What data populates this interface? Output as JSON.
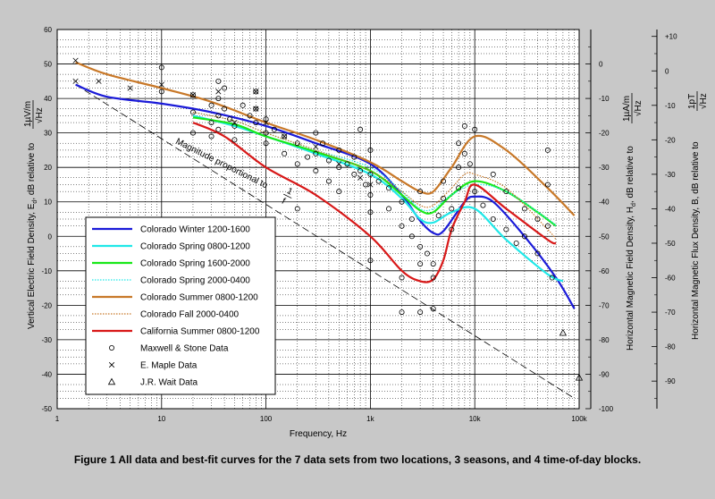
{
  "chart_data": {
    "type": "scatter",
    "title": "",
    "caption": "Figure 1  All data and best-fit curves for the 7 data sets from two locations, 3 seasons, and 4 time-of-day blocks.",
    "xlabel": "Frequency,  Hz",
    "x_scale": "log",
    "xlim": [
      1,
      100000
    ],
    "x_tick_labels": [
      "1",
      "10",
      "100",
      "1k",
      "10k",
      "100k"
    ],
    "ylabel_left": "Vertical Electric Field Density,  E",
    "ylabel_left_sub": "d",
    "ylabel_left_tail": ", dB relative to",
    "ylabel_left_unit_num": "1µV/m",
    "ylabel_left_unit_den": "√Hz",
    "ylim_left": [
      -50,
      60
    ],
    "y_left_ticks": [
      "60",
      "50",
      "40",
      "30",
      "20",
      "10",
      "0",
      "-10",
      "-20",
      "-30",
      "-40",
      "-50"
    ],
    "ylabel_mid": "Horizontal Magnetic Field Density,  H",
    "ylabel_mid_sub": "d",
    "ylabel_mid_tail": ", dB relative to",
    "ylabel_mid_unit_num": "1µA/m",
    "ylabel_mid_unit_den": "√Hz",
    "ylim_mid": [
      -100,
      10
    ],
    "y_mid_ticks": [
      "0",
      "-10",
      "-20",
      "-30",
      "-40",
      "-50",
      "-60",
      "-70",
      "-80",
      "-90",
      "-100"
    ],
    "ylabel_right": "Horizontal Magnetic Flux Density,  B, dB relative to",
    "ylabel_right_unit_num": "1pT",
    "ylabel_right_unit_den": "√Hz",
    "ylim_right": [
      -98,
      12
    ],
    "y_right_ticks": [
      "+10",
      "0",
      "-10",
      "-20",
      "-30",
      "-40",
      "-50",
      "-60",
      "-70",
      "-80",
      "-90"
    ],
    "grid": true,
    "legend_position": "bottom-left",
    "annotation_magnitude": "Magnitude proportional to",
    "annotation_fraction_num": "1",
    "annotation_fraction_den": "f",
    "reference_line": [
      [
        1.5,
        44
      ],
      [
        90000,
        -47
      ]
    ],
    "series": [
      {
        "name": "Colorado Winter 1200-1600",
        "color": "#1a1ad8",
        "style": "solid",
        "points": [
          [
            1.5,
            44
          ],
          [
            3,
            40.5
          ],
          [
            10,
            38.5
          ],
          [
            30,
            36
          ],
          [
            100,
            32
          ],
          [
            300,
            27
          ],
          [
            1000,
            21
          ],
          [
            2000,
            12
          ],
          [
            3000,
            4.5
          ],
          [
            4000,
            1
          ],
          [
            5000,
            1.5
          ],
          [
            8000,
            10
          ],
          [
            10000,
            11.5
          ],
          [
            15000,
            10
          ],
          [
            30000,
            0
          ],
          [
            60000,
            -12
          ],
          [
            90000,
            -21
          ]
        ]
      },
      {
        "name": "Colorado Spring 0800-1200",
        "color": "#20e8e8",
        "style": "solid",
        "points": [
          [
            20,
            35
          ],
          [
            50,
            32
          ],
          [
            100,
            29
          ],
          [
            300,
            24
          ],
          [
            1000,
            18
          ],
          [
            2000,
            11
          ],
          [
            3000,
            5
          ],
          [
            4000,
            4
          ],
          [
            6000,
            7
          ],
          [
            10000,
            8
          ],
          [
            20000,
            -1
          ],
          [
            50000,
            -11
          ],
          [
            70000,
            -13
          ]
        ]
      },
      {
        "name": "Colorado Spring 1600-2000",
        "color": "#18e818",
        "style": "solid",
        "points": [
          [
            20,
            34.5
          ],
          [
            50,
            32.5
          ],
          [
            100,
            29
          ],
          [
            300,
            24.5
          ],
          [
            1000,
            19
          ],
          [
            2000,
            12
          ],
          [
            3000,
            7.5
          ],
          [
            4000,
            7
          ],
          [
            6000,
            12
          ],
          [
            10000,
            16
          ],
          [
            20000,
            13
          ],
          [
            40000,
            7
          ],
          [
            60000,
            3
          ]
        ]
      },
      {
        "name": "Colorado Spring 2000-0400",
        "color": "#20e8e8",
        "style": "dotted",
        "points": [
          [
            20,
            36
          ],
          [
            50,
            33.5
          ],
          [
            100,
            30
          ],
          [
            300,
            25
          ],
          [
            1000,
            20
          ],
          [
            2000,
            13
          ],
          [
            3000,
            8
          ],
          [
            4000,
            8
          ],
          [
            6000,
            12
          ],
          [
            10000,
            15
          ],
          [
            20000,
            13
          ],
          [
            50000,
            5
          ],
          [
            60000,
            3
          ]
        ]
      },
      {
        "name": "Colorado Summer 0800-1200",
        "color": "#c87828",
        "style": "solid",
        "points": [
          [
            1.5,
            50.5
          ],
          [
            3,
            47
          ],
          [
            10,
            43
          ],
          [
            30,
            39
          ],
          [
            100,
            33
          ],
          [
            300,
            28
          ],
          [
            1000,
            21.5
          ],
          [
            2000,
            16
          ],
          [
            3000,
            13
          ],
          [
            4000,
            13
          ],
          [
            6000,
            20
          ],
          [
            10000,
            29
          ],
          [
            20000,
            25
          ],
          [
            50000,
            14
          ],
          [
            90000,
            6
          ]
        ]
      },
      {
        "name": "Colorado Fall 2000-0400",
        "color": "#c87828",
        "style": "dotted",
        "points": [
          [
            20,
            36
          ],
          [
            50,
            33.5
          ],
          [
            100,
            30
          ],
          [
            300,
            25
          ],
          [
            1000,
            19
          ],
          [
            2000,
            13
          ],
          [
            3000,
            9
          ],
          [
            4000,
            9
          ],
          [
            6000,
            14
          ],
          [
            8000,
            18
          ],
          [
            10000,
            18
          ],
          [
            20000,
            14
          ],
          [
            50000,
            2
          ],
          [
            60000,
            -1
          ]
        ]
      },
      {
        "name": "California Summer 0800-1200",
        "color": "#d81818",
        "style": "solid",
        "points": [
          [
            20,
            33
          ],
          [
            40,
            29
          ],
          [
            100,
            20
          ],
          [
            300,
            12
          ],
          [
            1000,
            0
          ],
          [
            2000,
            -10
          ],
          [
            3000,
            -13
          ],
          [
            4000,
            -12.5
          ],
          [
            5000,
            -7
          ],
          [
            6000,
            2
          ],
          [
            8000,
            10
          ],
          [
            10000,
            15
          ],
          [
            20000,
            8
          ],
          [
            50000,
            -1
          ],
          [
            60000,
            -2
          ]
        ]
      },
      {
        "name": "Maxwell & Stone Data",
        "marker": "circle",
        "color": "#000000",
        "points": [
          [
            10,
            49
          ],
          [
            10,
            42
          ],
          [
            20,
            41
          ],
          [
            20,
            36
          ],
          [
            20,
            30
          ],
          [
            30,
            38
          ],
          [
            30,
            33
          ],
          [
            30,
            29
          ],
          [
            35,
            45
          ],
          [
            35,
            40
          ],
          [
            35,
            35
          ],
          [
            35,
            31
          ],
          [
            40,
            43
          ],
          [
            40,
            37
          ],
          [
            45,
            34
          ],
          [
            50,
            32
          ],
          [
            50,
            28
          ],
          [
            60,
            38
          ],
          [
            70,
            35
          ],
          [
            80,
            42
          ],
          [
            80,
            37
          ],
          [
            80,
            33
          ],
          [
            100,
            34
          ],
          [
            100,
            30
          ],
          [
            100,
            27
          ],
          [
            120,
            31
          ],
          [
            150,
            29
          ],
          [
            150,
            24
          ],
          [
            200,
            8
          ],
          [
            200,
            21
          ],
          [
            200,
            27
          ],
          [
            250,
            23
          ],
          [
            300,
            30
          ],
          [
            300,
            24
          ],
          [
            300,
            19
          ],
          [
            350,
            27
          ],
          [
            400,
            22
          ],
          [
            400,
            16
          ],
          [
            500,
            25
          ],
          [
            500,
            20
          ],
          [
            500,
            13
          ],
          [
            600,
            21
          ],
          [
            700,
            18
          ],
          [
            700,
            23
          ],
          [
            800,
            31
          ],
          [
            800,
            19
          ],
          [
            900,
            15
          ],
          [
            1000,
            25
          ],
          [
            1000,
            18
          ],
          [
            1000,
            12
          ],
          [
            1000,
            7
          ],
          [
            1000,
            -7
          ],
          [
            1200,
            16
          ],
          [
            1500,
            14
          ],
          [
            1500,
            8
          ],
          [
            2000,
            10
          ],
          [
            2000,
            3
          ],
          [
            2000,
            -12
          ],
          [
            2000,
            -22
          ],
          [
            2500,
            5
          ],
          [
            2500,
            0
          ],
          [
            3000,
            13
          ],
          [
            3000,
            -3
          ],
          [
            3000,
            -8
          ],
          [
            3000,
            -22
          ],
          [
            3500,
            -5
          ],
          [
            4000,
            -8
          ],
          [
            4000,
            -12
          ],
          [
            4000,
            -21
          ],
          [
            4500,
            6
          ],
          [
            5000,
            11
          ],
          [
            5000,
            16
          ],
          [
            6000,
            8
          ],
          [
            6000,
            2
          ],
          [
            7000,
            27
          ],
          [
            7000,
            20
          ],
          [
            7000,
            14
          ],
          [
            8000,
            32
          ],
          [
            8000,
            24
          ],
          [
            9000,
            21
          ],
          [
            10000,
            31
          ],
          [
            10000,
            13
          ],
          [
            12000,
            9
          ],
          [
            15000,
            18
          ],
          [
            15000,
            5
          ],
          [
            20000,
            13
          ],
          [
            20000,
            2
          ],
          [
            25000,
            -2
          ],
          [
            30000,
            8
          ],
          [
            30000,
            0
          ],
          [
            40000,
            5
          ],
          [
            40000,
            -5
          ],
          [
            50000,
            15
          ],
          [
            50000,
            25
          ],
          [
            50000,
            3
          ],
          [
            55000,
            -12
          ]
        ]
      },
      {
        "name": "E. Maple Data",
        "marker": "x",
        "color": "#000000",
        "points": [
          [
            1.5,
            51
          ],
          [
            1.5,
            45
          ],
          [
            2.5,
            45
          ],
          [
            5,
            43
          ],
          [
            10,
            44
          ],
          [
            20,
            41
          ],
          [
            35,
            42
          ],
          [
            50,
            33
          ],
          [
            80,
            42
          ],
          [
            80,
            37
          ],
          [
            100,
            33
          ],
          [
            150,
            29
          ],
          [
            300,
            26
          ],
          [
            500,
            21
          ],
          [
            800,
            17
          ],
          [
            1000,
            15
          ]
        ]
      },
      {
        "name": "J.R. Wait Data",
        "marker": "triangle",
        "color": "#000000",
        "points": [
          [
            70000,
            -28
          ],
          [
            100000,
            -41
          ]
        ]
      }
    ]
  }
}
